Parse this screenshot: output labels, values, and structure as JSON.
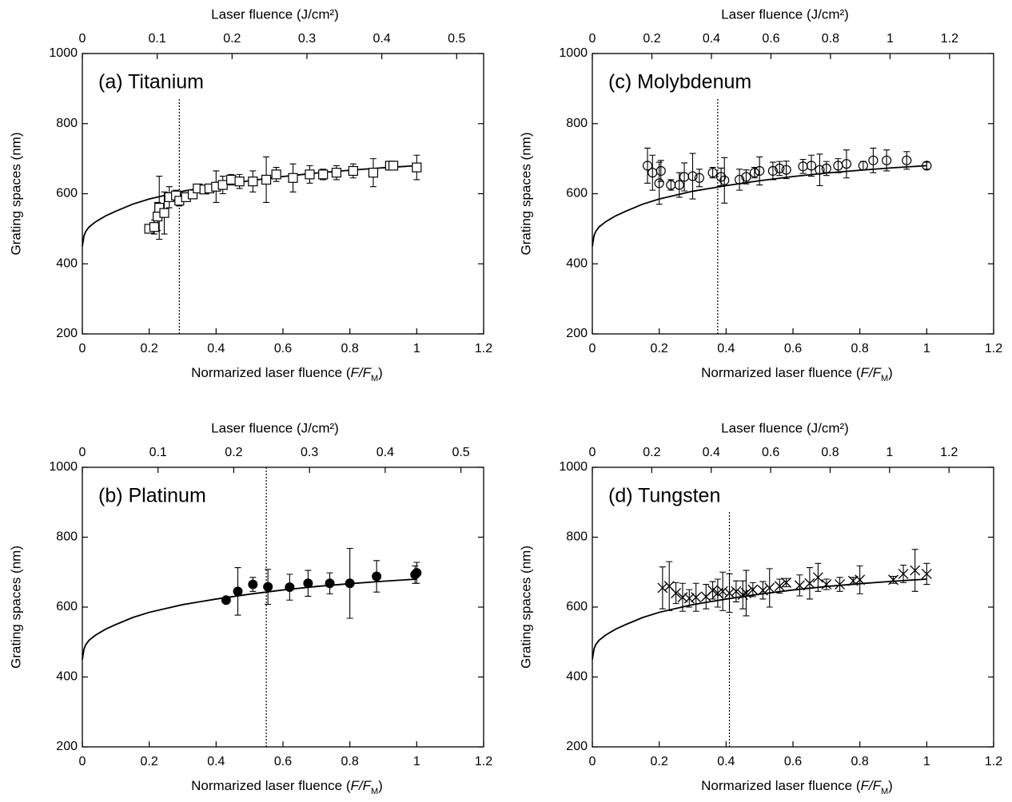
{
  "chart_data": [
    {
      "type": "scatter",
      "title": "(a) Titanium",
      "marker": "square",
      "ylabel": "Grating spaces (nm)",
      "x2label": "Laser fluence (J/cm²)",
      "xlabel": [
        "Normarized laser fluence (",
        "F/F",
        "M",
        ")"
      ],
      "xlim": [
        0,
        1.2
      ],
      "xticks": [
        0,
        0.2,
        0.4,
        0.6,
        0.8,
        1,
        1.2
      ],
      "x2lim": [
        0,
        0.536
      ],
      "x2ticks": [
        0,
        0.1,
        0.2,
        0.3,
        0.4,
        0.5
      ],
      "ylim": [
        200,
        1000
      ],
      "yticks": [
        200,
        400,
        600,
        800,
        1000
      ],
      "x": [
        0.2,
        0.215,
        0.225,
        0.23,
        0.245,
        0.26,
        0.28,
        0.29,
        0.31,
        0.33,
        0.345,
        0.365,
        0.38,
        0.4,
        0.42,
        0.445,
        0.47,
        0.51,
        0.55,
        0.58,
        0.63,
        0.68,
        0.72,
        0.76,
        0.81,
        0.87,
        0.92,
        0.93,
        1.0
      ],
      "values": [
        500,
        505,
        535,
        560,
        545,
        590,
        595,
        580,
        590,
        598,
        615,
        612,
        615,
        620,
        625,
        640,
        635,
        635,
        640,
        655,
        645,
        655,
        655,
        660,
        665,
        660,
        680,
        680,
        675
      ],
      "errors": [
        12,
        20,
        40,
        90,
        60,
        30,
        15,
        15,
        10,
        10,
        12,
        10,
        10,
        45,
        25,
        15,
        20,
        30,
        65,
        20,
        40,
        25,
        15,
        20,
        20,
        40,
        12,
        10,
        35
      ],
      "fit": {
        "x": [
          0,
          0.005,
          0.01,
          0.02,
          0.04,
          0.07,
          0.1,
          0.15,
          0.2,
          0.3,
          0.4,
          0.5,
          0.6,
          0.7,
          0.8,
          0.9,
          1.0
        ],
        "values": [
          450,
          480,
          492,
          505,
          520,
          537,
          550,
          570,
          585,
          607,
          623,
          637,
          649,
          659,
          667,
          674,
          680
        ]
      },
      "vline": {
        "x": 0.29,
        "ymax": 875
      }
    },
    {
      "type": "scatter",
      "title": "(b) Platinum",
      "marker": "filled-circle",
      "ylabel": "Grating spaces (nm)",
      "x2label": "Laser fluence (J/cm²)",
      "xlabel": [
        "Normarized laser fluence (",
        "F/F",
        "M",
        ")"
      ],
      "xlim": [
        0,
        1.2
      ],
      "xticks": [
        0,
        0.2,
        0.4,
        0.6,
        0.8,
        1,
        1.2
      ],
      "x2lim": [
        0,
        0.53
      ],
      "x2ticks": [
        0,
        0.1,
        0.2,
        0.3,
        0.4,
        0.5
      ],
      "ylim": [
        200,
        1000
      ],
      "yticks": [
        200,
        400,
        600,
        800,
        1000
      ],
      "x": [
        0.43,
        0.465,
        0.51,
        0.555,
        0.62,
        0.675,
        0.74,
        0.8,
        0.88,
        0.995,
        1.0
      ],
      "values": [
        620,
        645,
        665,
        658,
        657,
        668,
        668,
        668,
        688,
        693,
        698
      ],
      "errors": [
        5,
        68,
        20,
        50,
        37,
        37,
        30,
        100,
        45,
        25,
        30
      ],
      "fit": {
        "x": [
          0,
          0.005,
          0.01,
          0.02,
          0.04,
          0.07,
          0.1,
          0.15,
          0.2,
          0.3,
          0.4,
          0.5,
          0.6,
          0.7,
          0.8,
          0.9,
          1.0
        ],
        "values": [
          450,
          480,
          492,
          505,
          520,
          537,
          550,
          570,
          585,
          607,
          623,
          637,
          649,
          659,
          667,
          674,
          680
        ]
      },
      "vline": {
        "x": 0.55,
        "ymax": 1000
      }
    },
    {
      "type": "scatter",
      "title": "(c) Molybdenum",
      "marker": "circle",
      "ylabel": "Grating spaces (nm)",
      "x2label": "Laser fluence (J/cm²)",
      "xlabel": [
        "Normarized laser fluence (",
        "F/F",
        "M",
        ")"
      ],
      "xlim": [
        0,
        1.2
      ],
      "xticks": [
        0,
        0.2,
        0.4,
        0.6,
        0.8,
        1,
        1.2
      ],
      "x2lim": [
        0,
        1.348
      ],
      "x2ticks": [
        0,
        0.2,
        0.4,
        0.6,
        0.8,
        1,
        1.2
      ],
      "ylim": [
        200,
        1000
      ],
      "yticks": [
        200,
        400,
        600,
        800,
        1000
      ],
      "x": [
        0.165,
        0.18,
        0.2,
        0.205,
        0.235,
        0.26,
        0.275,
        0.3,
        0.32,
        0.36,
        0.385,
        0.395,
        0.44,
        0.46,
        0.485,
        0.5,
        0.54,
        0.56,
        0.58,
        0.63,
        0.655,
        0.68,
        0.7,
        0.735,
        0.76,
        0.81,
        0.84,
        0.88,
        0.94,
        1.0
      ],
      "values": [
        680,
        660,
        630,
        665,
        625,
        625,
        648,
        650,
        645,
        660,
        648,
        638,
        640,
        648,
        660,
        665,
        665,
        672,
        668,
        678,
        680,
        668,
        672,
        680,
        685,
        680,
        695,
        695,
        695,
        680
      ],
      "errors": [
        50,
        50,
        60,
        30,
        15,
        35,
        40,
        65,
        25,
        15,
        25,
        65,
        30,
        20,
        15,
        40,
        25,
        20,
        25,
        20,
        30,
        45,
        20,
        20,
        40,
        12,
        35,
        30,
        25,
        10
      ],
      "fit": {
        "x": [
          0,
          0.005,
          0.01,
          0.02,
          0.04,
          0.07,
          0.1,
          0.15,
          0.2,
          0.3,
          0.4,
          0.5,
          0.6,
          0.7,
          0.8,
          0.9,
          1.0
        ],
        "values": [
          450,
          480,
          492,
          505,
          520,
          537,
          550,
          570,
          585,
          607,
          623,
          637,
          649,
          659,
          667,
          674,
          680
        ]
      },
      "vline": {
        "x": 0.375,
        "ymax": 875
      }
    },
    {
      "type": "scatter",
      "title": "(d) Tungsten",
      "marker": "cross",
      "ylabel": "Grating spaces (nm)",
      "x2label": "Laser fluence (J/cm²)",
      "xlabel": [
        "Normarized laser fluence (",
        "F/F",
        "M",
        ")"
      ],
      "xlim": [
        0,
        1.2
      ],
      "xticks": [
        0,
        0.2,
        0.4,
        0.6,
        0.8,
        1,
        1.2
      ],
      "x2lim": [
        0,
        1.35
      ],
      "x2ticks": [
        0,
        0.2,
        0.4,
        0.6,
        0.8,
        1,
        1.2
      ],
      "ylim": [
        200,
        1000
      ],
      "yticks": [
        200,
        400,
        600,
        800,
        1000
      ],
      "x": [
        0.21,
        0.23,
        0.25,
        0.27,
        0.29,
        0.31,
        0.34,
        0.36,
        0.375,
        0.39,
        0.41,
        0.43,
        0.45,
        0.46,
        0.48,
        0.51,
        0.53,
        0.56,
        0.58,
        0.62,
        0.65,
        0.675,
        0.7,
        0.74,
        0.78,
        0.8,
        0.9,
        0.93,
        0.965,
        1.0
      ],
      "values": [
        655,
        660,
        640,
        628,
        625,
        628,
        630,
        648,
        640,
        645,
        640,
        645,
        635,
        640,
        650,
        648,
        655,
        660,
        670,
        662,
        668,
        685,
        665,
        665,
        675,
        678,
        678,
        695,
        705,
        695
      ],
      "errors": [
        60,
        70,
        30,
        40,
        25,
        40,
        35,
        25,
        40,
        55,
        55,
        30,
        40,
        65,
        20,
        25,
        55,
        20,
        12,
        30,
        45,
        40,
        15,
        20,
        10,
        40,
        10,
        25,
        60,
        30
      ],
      "fit": {
        "x": [
          0,
          0.005,
          0.01,
          0.02,
          0.04,
          0.07,
          0.1,
          0.15,
          0.2,
          0.3,
          0.4,
          0.5,
          0.6,
          0.7,
          0.8,
          0.9,
          1.0
        ],
        "values": [
          450,
          480,
          492,
          505,
          520,
          537,
          550,
          570,
          585,
          607,
          623,
          637,
          649,
          659,
          667,
          674,
          680
        ]
      },
      "vline": {
        "x": 0.41,
        "ymax": 875
      }
    }
  ]
}
